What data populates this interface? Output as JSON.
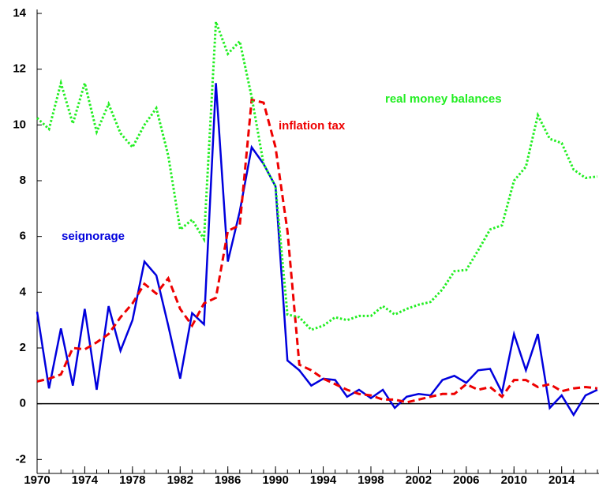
{
  "chart_data": {
    "type": "line",
    "x": [
      1970,
      1971,
      1972,
      1973,
      1974,
      1975,
      1976,
      1977,
      1978,
      1979,
      1980,
      1981,
      1982,
      1983,
      1984,
      1985,
      1986,
      1987,
      1988,
      1989,
      1990,
      1991,
      1992,
      1993,
      1994,
      1995,
      1996,
      1997,
      1998,
      1999,
      2000,
      2001,
      2002,
      2003,
      2004,
      2005,
      2006,
      2007,
      2008,
      2009,
      2010,
      2011,
      2012,
      2013,
      2014,
      2015,
      2016,
      2017
    ],
    "series": [
      {
        "name": "seignorage",
        "color": "#0000dd",
        "dash": "solid",
        "values": [
          3.3,
          0.55,
          2.7,
          0.65,
          3.4,
          0.5,
          3.5,
          1.9,
          3.0,
          5.1,
          4.6,
          2.8,
          0.9,
          3.25,
          2.85,
          11.5,
          5.1,
          6.9,
          9.2,
          8.6,
          7.8,
          1.55,
          1.2,
          0.65,
          0.9,
          0.85,
          0.25,
          0.5,
          0.2,
          0.5,
          -0.15,
          0.25,
          0.35,
          0.3,
          0.85,
          1.0,
          0.75,
          1.2,
          1.25,
          0.4,
          2.5,
          1.2,
          2.5,
          -0.15,
          0.3,
          -0.4,
          0.3,
          0.5
        ]
      },
      {
        "name": "inflation tax",
        "color": "#ee0000",
        "dash": "dashed",
        "values": [
          0.8,
          0.9,
          1.05,
          2.0,
          1.95,
          2.2,
          2.5,
          3.1,
          3.6,
          4.3,
          3.95,
          4.5,
          3.4,
          2.8,
          3.6,
          3.8,
          6.2,
          6.4,
          10.9,
          10.8,
          9.2,
          6.2,
          1.4,
          1.2,
          0.9,
          0.7,
          0.5,
          0.35,
          0.3,
          0.15,
          0.15,
          0.05,
          0.15,
          0.25,
          0.35,
          0.35,
          0.7,
          0.5,
          0.6,
          0.25,
          0.85,
          0.85,
          0.6,
          0.7,
          0.45,
          0.55,
          0.6,
          0.55
        ]
      },
      {
        "name": "real money balances",
        "color": "#22ee22",
        "dash": "dotted",
        "values": [
          10.25,
          9.85,
          11.5,
          10.05,
          11.5,
          9.75,
          10.75,
          9.7,
          9.2,
          10.0,
          10.6,
          8.9,
          6.25,
          6.6,
          5.9,
          13.7,
          12.55,
          13.0,
          11.0,
          8.6,
          7.8,
          3.2,
          3.1,
          2.65,
          2.8,
          3.1,
          3.0,
          3.15,
          3.15,
          3.5,
          3.2,
          3.4,
          3.55,
          3.65,
          4.1,
          4.75,
          4.8,
          5.5,
          6.25,
          6.4,
          8.0,
          8.5,
          10.35,
          9.5,
          9.35,
          8.4,
          8.1,
          8.15
        ]
      }
    ],
    "xlim": [
      1970,
      2017
    ],
    "xticks": [
      1970,
      1974,
      1978,
      1982,
      1986,
      1990,
      1994,
      1998,
      2002,
      2006,
      2010,
      2014
    ],
    "ylim": [
      -2.5,
      14
    ],
    "yticks": [
      -2,
      0,
      2,
      4,
      6,
      8,
      10,
      12,
      14
    ],
    "zero_line": true
  }
}
